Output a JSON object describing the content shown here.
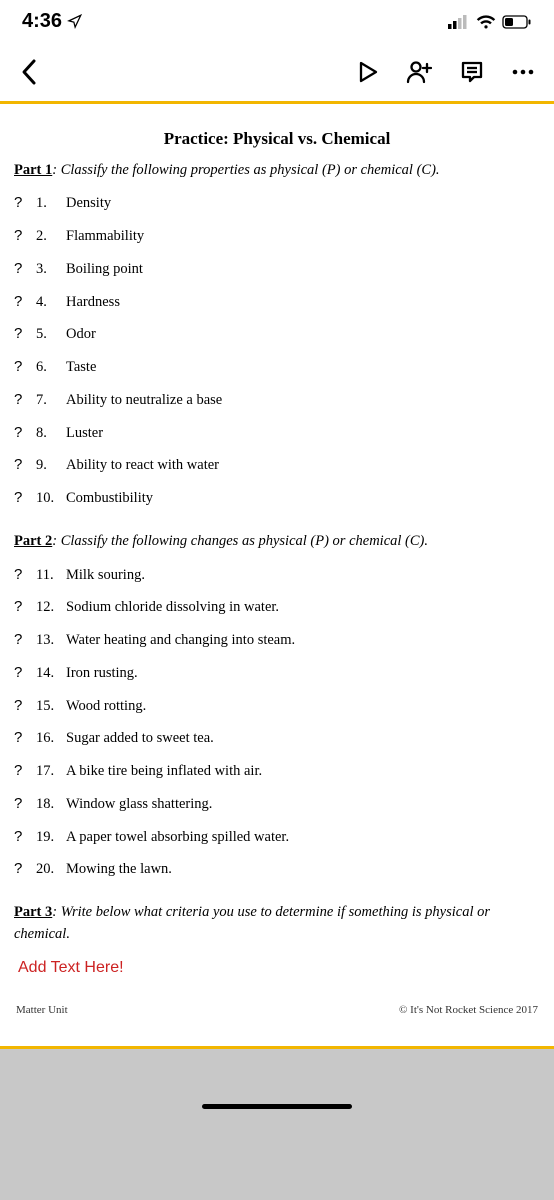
{
  "status": {
    "time": "4:36"
  },
  "colors": {
    "accent": "#f2b600",
    "answer_text": "#c22"
  },
  "document": {
    "title": "Practice: Physical vs. Chemical",
    "part1": {
      "label": "Part 1",
      "instruction": ": Classify the following properties as physical (P) or chemical (C).",
      "items": [
        {
          "num": "1.",
          "text": "Density"
        },
        {
          "num": "2.",
          "text": "Flammability"
        },
        {
          "num": "3.",
          "text": "Boiling point"
        },
        {
          "num": "4.",
          "text": "Hardness"
        },
        {
          "num": "5.",
          "text": "Odor"
        },
        {
          "num": "6.",
          "text": "Taste"
        },
        {
          "num": "7.",
          "text": "Ability to neutralize a base"
        },
        {
          "num": "8.",
          "text": "Luster"
        },
        {
          "num": "9.",
          "text": "Ability to react with water"
        },
        {
          "num": "10.",
          "text": "Combustibility"
        }
      ]
    },
    "part2": {
      "label": "Part 2",
      "instruction": ": Classify the following changes as physical (P) or chemical (C).",
      "items": [
        {
          "num": "11.",
          "text": "Milk souring."
        },
        {
          "num": "12.",
          "text": "Sodium chloride dissolving in water."
        },
        {
          "num": "13.",
          "text": "Water heating and changing into steam."
        },
        {
          "num": "14.",
          "text": "Iron rusting."
        },
        {
          "num": "15.",
          "text": "Wood rotting."
        },
        {
          "num": "16.",
          "text": "Sugar added to sweet tea."
        },
        {
          "num": "17.",
          "text": "A bike tire being inflated with air."
        },
        {
          "num": "18.",
          "text": "Window glass shattering."
        },
        {
          "num": "19.",
          "text": "A paper towel absorbing spilled water."
        },
        {
          "num": "20.",
          "text": "Mowing the lawn."
        }
      ]
    },
    "part3": {
      "label": "Part 3",
      "instruction": ": Write below what criteria you use to determine if something is physical or chemical.",
      "answer_placeholder": "Add Text Here!"
    },
    "footer_left": "Matter Unit",
    "footer_right": "© It's Not Rocket Science 2017"
  },
  "question_marker": "?"
}
